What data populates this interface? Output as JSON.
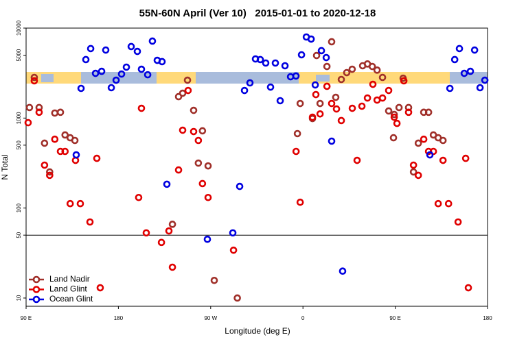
{
  "chart_data": {
    "type": "scatter",
    "title": "55N-60N April (Ver 10)   2015-01-01 to 2020-12-18",
    "x_label": "Longitude (deg E)",
    "y_label": "N Total",
    "xlim": [
      90,
      540
    ],
    "ylim": [
      8.1,
      10000
    ],
    "log_y": true,
    "legend": "bottom-left",
    "hline": 50,
    "xticks": [
      {
        "value": 90,
        "label": "90 E"
      },
      {
        "value": 180,
        "label": "180"
      },
      {
        "value": 270,
        "label": "90 W"
      },
      {
        "value": 360,
        "label": "0"
      },
      {
        "value": 450,
        "label": "90 E"
      },
      {
        "value": 540,
        "label": "180"
      }
    ],
    "yticks": [
      10,
      50,
      100,
      500,
      1000,
      5000,
      10000
    ],
    "series": [
      {
        "name": "Land Nadir",
        "color": "#a0302a",
        "x": [
          93.3,
          98,
          102.7,
          108,
          113,
          118,
          123.5,
          128,
          133,
          137.6,
          238.7,
          242.7,
          247.4,
          253.4,
          258,
          262,
          267.5,
          273.5,
          296,
          232.7,
          354.6,
          357.3,
          369.3,
          373.3,
          376.7,
          383.4,
          388,
          392,
          397.4,
          402.7,
          408,
          418.2,
          422.9,
          427.6,
          432.3,
          437.6,
          443.6,
          449,
          453.7,
          457.7,
          463,
          467.8,
          472.5,
          477.8,
          482.5,
          487.2,
          491.9,
          496.6,
          448.3
        ],
        "values": [
          1309,
          2830,
          1309,
          526,
          252,
          1137,
          1160,
          649,
          604,
          564,
          1730,
          1890,
          2637,
          1219,
          316,
          721,
          294,
          15.7,
          10,
          66,
          672,
          1452,
          988,
          4955,
          1452,
          3743,
          7047,
          1701,
          2685,
          3198,
          3491,
          3812,
          3993,
          3743,
          3412,
          2830,
          1200,
          1096,
          1309,
          2770,
          1309,
          252,
          526,
          1160,
          1160,
          649,
          604,
          564,
          604
        ]
      },
      {
        "name": "Land Glint",
        "color": "#e00000",
        "x": [
          92,
          98,
          102.7,
          108,
          113,
          118,
          123.5,
          128,
          133,
          138.2,
          142.9,
          152.3,
          159,
          162.3,
          199.8,
          202.5,
          207.2,
          222,
          229.3,
          232.7,
          238.7,
          242.7,
          248,
          253.4,
          258,
          262,
          267.5,
          292.3,
          353.3,
          357.3,
          369.3,
          372.6,
          376.7,
          383.4,
          388,
          392.7,
          397.4,
          408.1,
          412.8,
          417.5,
          422.9,
          428.2,
          432.3,
          437.6,
          443.6,
          449,
          451.7,
          458.4,
          463,
          467.8,
          472.5,
          477.8,
          482.5,
          487.2,
          491.9,
          496.6,
          502,
          511.3,
          518.7,
          521.3
        ],
        "values": [
          889,
          2594,
          1160,
          300,
          231,
          582,
          426,
          426,
          112,
          339,
          112,
          70,
          357,
          13,
          131,
          1285,
          53,
          41.5,
          55.7,
          22,
          265,
          733,
          2027,
          708,
          564,
          187,
          131,
          34,
          426,
          116,
          1023,
          1824,
          1112,
          2254,
          1452,
          1262,
          938,
          1285,
          339,
          1355,
          1671,
          2374,
          1585,
          1671,
          2027,
          1023,
          873,
          2594,
          1160,
          300,
          231,
          582,
          426,
          426,
          112,
          339,
          112,
          70,
          357,
          13
        ]
      },
      {
        "name": "Ocean Glint",
        "color": "#0000e0",
        "x": [
          138.9,
          143.6,
          148.3,
          153,
          157.7,
          163.7,
          167.7,
          173.1,
          177.8,
          183.1,
          187.8,
          192.5,
          198.5,
          202.5,
          208.6,
          213.2,
          217.9,
          222.6,
          227.3,
          266.8,
          291.6,
          298.3,
          303,
          308.3,
          313.7,
          318.4,
          323.7,
          328.4,
          333.1,
          337.8,
          342.5,
          347.9,
          353.2,
          358.6,
          363.3,
          368,
          372,
          378,
          382.7,
          388,
          398.7,
          483.8,
          503.3,
          508,
          512.6,
          517.3,
          523.3,
          527.4,
          532.7,
          537.4
        ],
        "values": [
          390,
          2138,
          4466,
          5916,
          3141,
          3308,
          5700,
          2175,
          2637,
          3086,
          3681,
          6232,
          5508,
          3491,
          3029,
          7170,
          4385,
          4239,
          184,
          45,
          53,
          174,
          2027,
          2460,
          4540,
          4466,
          4090,
          2208,
          4090,
          1559,
          3812,
          2877,
          2935,
          5047,
          7962,
          7551,
          2336,
          5610,
          4700,
          554,
          19.9,
          390,
          2138,
          4466,
          5916,
          3141,
          3308,
          5700,
          2175,
          2637
        ]
      }
    ]
  }
}
